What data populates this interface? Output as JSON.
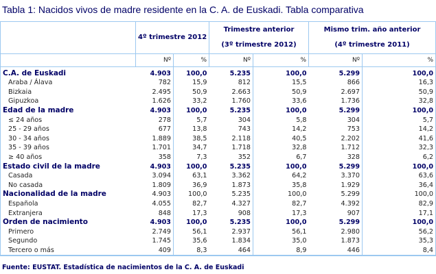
{
  "title": "Tabla 1: Nacidos vivos de madre residente en la C. A. de Euskadi. Tabla comparativa",
  "headers": {
    "col1": "4º trimestre 2012",
    "col2_line1": "Trimestre anterior",
    "col2_line2": "(3º trimestre 2012)",
    "col3_line1": "Mismo trim. año anterior",
    "col3_line2": "(4º trimestre 2011)",
    "n": "Nº",
    "pct": "%"
  },
  "rows": [
    {
      "label": "C.A. de Euskadi",
      "type": "group",
      "values": [
        "4.903",
        "100,0",
        "5.235",
        "100,0",
        "5.299",
        "100,0"
      ]
    },
    {
      "label": "Araba / Álava",
      "type": "item",
      "values": [
        "782",
        "15,9",
        "812",
        "15,5",
        "866",
        "16,3"
      ]
    },
    {
      "label": "Bizkaia",
      "type": "item",
      "values": [
        "2.495",
        "50,9",
        "2.663",
        "50,9",
        "2.697",
        "50,9"
      ]
    },
    {
      "label": "Gipuzkoa",
      "type": "item",
      "values": [
        "1.626",
        "33,2",
        "1.760",
        "33,6",
        "1.736",
        "32,8"
      ]
    },
    {
      "label": "Edad de la madre",
      "type": "group",
      "values": [
        "4.903",
        "100,0",
        "5.235",
        "100,0",
        "5.299",
        "100,0"
      ]
    },
    {
      "label": "≤ 24 años",
      "type": "item",
      "values": [
        "278",
        "5,7",
        "304",
        "5,8",
        "304",
        "5,7"
      ]
    },
    {
      "label": "25 - 29 años",
      "type": "item",
      "values": [
        "677",
        "13,8",
        "743",
        "14,2",
        "753",
        "14,2"
      ]
    },
    {
      "label": "30 - 34 años",
      "type": "item",
      "values": [
        "1.889",
        "38,5",
        "2.118",
        "40,5",
        "2.202",
        "41,6"
      ]
    },
    {
      "label": "35 - 39 años",
      "type": "item",
      "values": [
        "1.701",
        "34,7",
        "1.718",
        "32,8",
        "1.712",
        "32,3"
      ]
    },
    {
      "label": "≥ 40 años",
      "type": "item",
      "values": [
        "358",
        "7,3",
        "352",
        "6,7",
        "328",
        "6,2"
      ]
    },
    {
      "label": "Estado civil de la madre",
      "type": "group",
      "values": [
        "4.903",
        "100,0",
        "5.235",
        "100,0",
        "5.299",
        "100,0"
      ]
    },
    {
      "label": "Casada",
      "type": "item",
      "values": [
        "3.094",
        "63,1",
        "3.362",
        "64,2",
        "3.370",
        "63,6"
      ]
    },
    {
      "label": "No casada",
      "type": "item",
      "values": [
        "1.809",
        "36,9",
        "1.873",
        "35,8",
        "1.929",
        "36,4"
      ]
    },
    {
      "label": "Nacionalidad de la madre",
      "type": "group plain",
      "values": [
        "4.903",
        "100,0",
        "5.235",
        "100,0",
        "5.299",
        "100,0"
      ]
    },
    {
      "label": "Española",
      "type": "item",
      "values": [
        "4.055",
        "82,7",
        "4.327",
        "82,7",
        "4.392",
        "82,9"
      ]
    },
    {
      "label": "Extranjera",
      "type": "item",
      "values": [
        "848",
        "17,3",
        "908",
        "17,3",
        "907",
        "17,1"
      ]
    },
    {
      "label": "Orden de nacimiento",
      "type": "group",
      "values": [
        "4.903",
        "100,0",
        "5.235",
        "100,0",
        "5.299",
        "100,0"
      ]
    },
    {
      "label": "Primero",
      "type": "item",
      "values": [
        "2.749",
        "56,1",
        "2.937",
        "56,1",
        "2.980",
        "56,2"
      ]
    },
    {
      "label": "Segundo",
      "type": "item",
      "values": [
        "1.745",
        "35,6",
        "1.834",
        "35,0",
        "1.873",
        "35,3"
      ]
    },
    {
      "label": "Tercero o más",
      "type": "item",
      "values": [
        "409",
        "8,3",
        "464",
        "8,9",
        "446",
        "8,4"
      ]
    }
  ],
  "source": "Fuente: EUSTAT. Estadística de nacimientos de la C. A. de Euskadi"
}
